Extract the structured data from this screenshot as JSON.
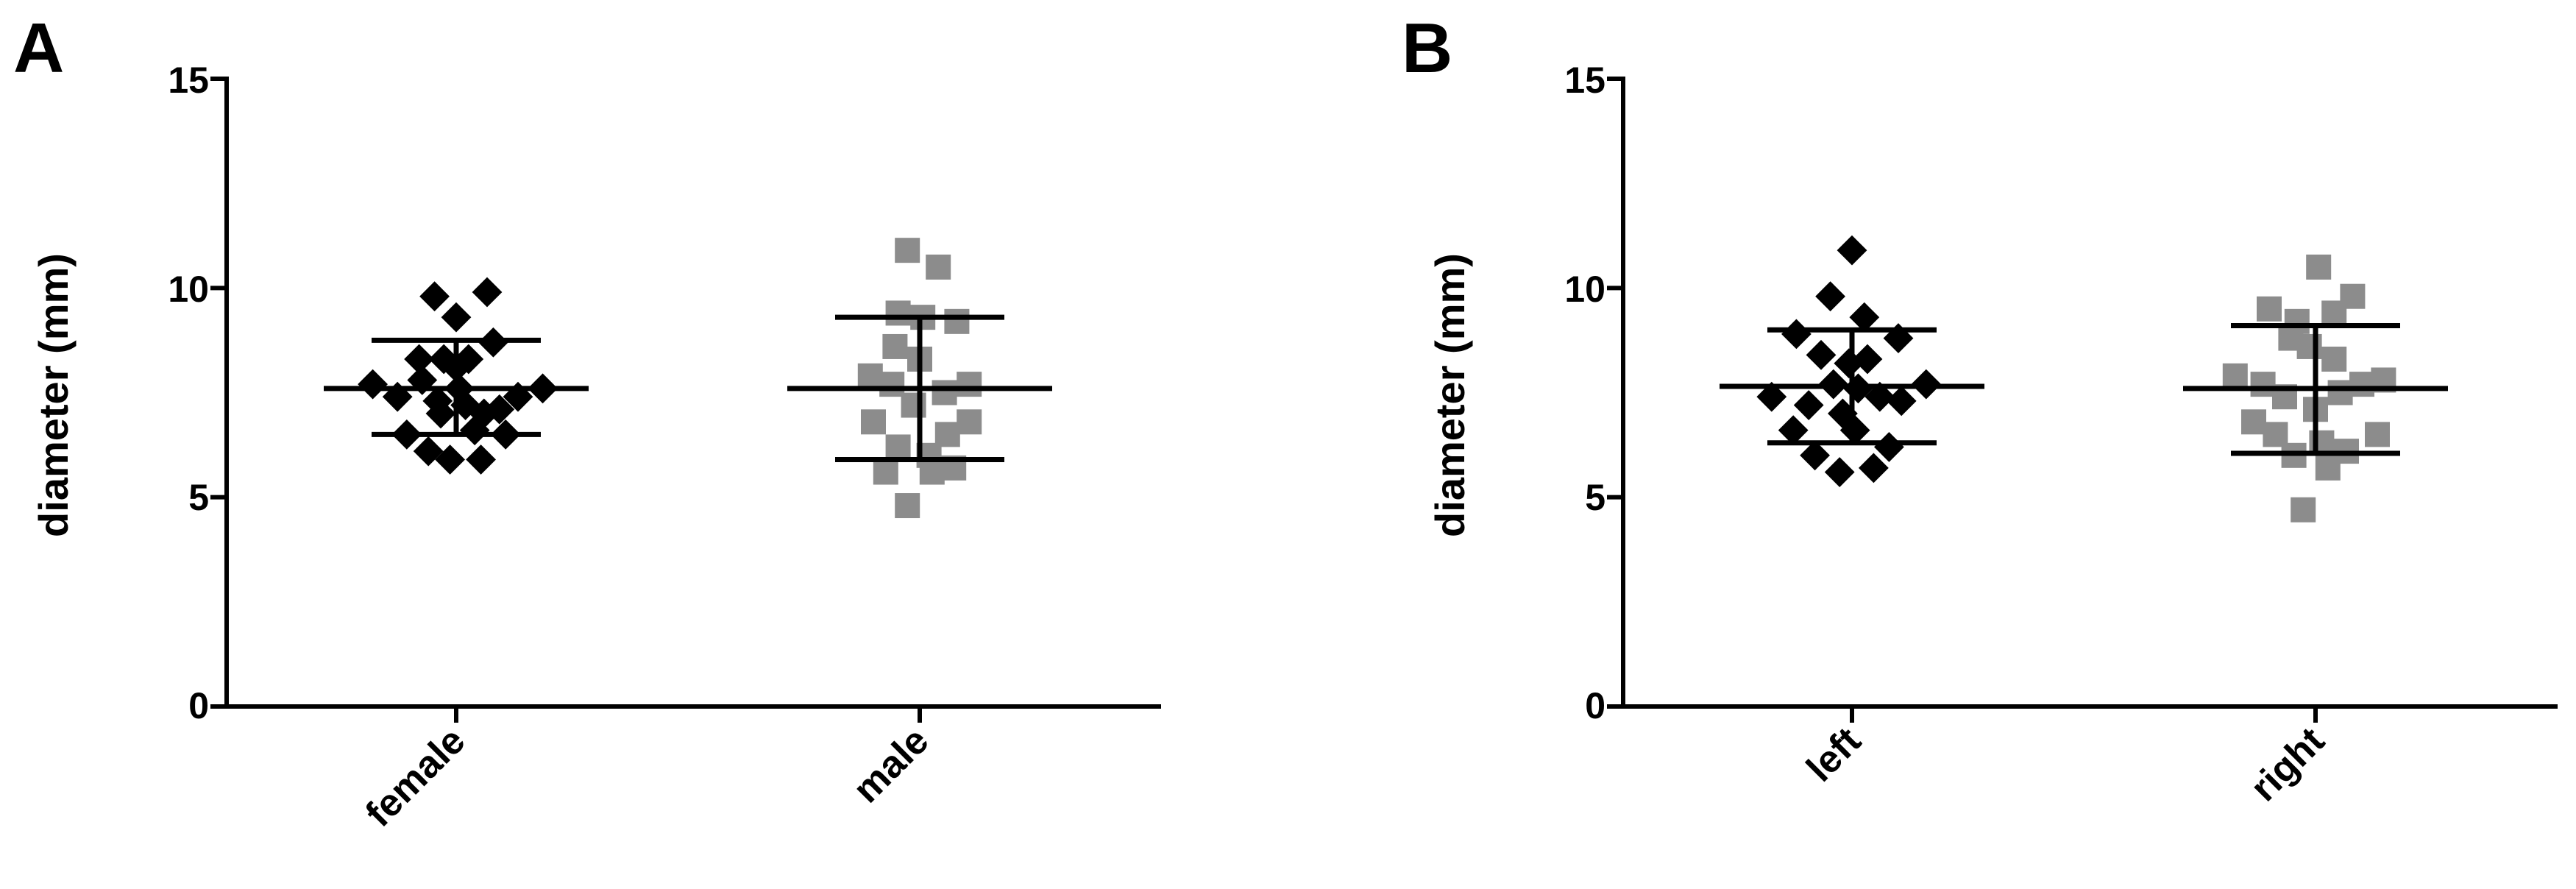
{
  "chart_data": [
    {
      "panel": "A",
      "type": "scatter",
      "title": "",
      "xlabel": "",
      "ylabel": "diameter (mm)",
      "ylim": [
        0,
        15
      ],
      "yticks": [
        0,
        5,
        10,
        15
      ],
      "grid": false,
      "legend": "none",
      "categories": [
        "female",
        "male"
      ],
      "series": [
        {
          "category": "female",
          "marker": "diamond",
          "color": "#000000",
          "summary_color": "#000000",
          "mean": 7.6,
          "sd_low": 6.5,
          "sd_high": 8.75,
          "points": [
            {
              "dx": -0.27,
              "y": 7.7
            },
            {
              "dx": -0.19,
              "y": 7.4
            },
            {
              "dx": -0.16,
              "y": 6.5
            },
            {
              "dx": -0.12,
              "y": 8.3
            },
            {
              "dx": -0.11,
              "y": 7.8
            },
            {
              "dx": -0.09,
              "y": 6.1
            },
            {
              "dx": -0.07,
              "y": 9.8
            },
            {
              "dx": -0.06,
              "y": 7.3
            },
            {
              "dx": -0.05,
              "y": 7.0
            },
            {
              "dx": -0.04,
              "y": 8.3
            },
            {
              "dx": -0.02,
              "y": 5.9
            },
            {
              "dx": 0.0,
              "y": 9.3
            },
            {
              "dx": 0.0,
              "y": 8.1
            },
            {
              "dx": 0.01,
              "y": 7.6
            },
            {
              "dx": 0.03,
              "y": 7.2
            },
            {
              "dx": 0.04,
              "y": 8.3
            },
            {
              "dx": 0.06,
              "y": 6.6
            },
            {
              "dx": 0.08,
              "y": 5.9
            },
            {
              "dx": 0.09,
              "y": 7.0
            },
            {
              "dx": 0.1,
              "y": 9.9
            },
            {
              "dx": 0.12,
              "y": 8.7
            },
            {
              "dx": 0.14,
              "y": 7.1
            },
            {
              "dx": 0.16,
              "y": 6.5
            },
            {
              "dx": 0.2,
              "y": 7.4
            },
            {
              "dx": 0.28,
              "y": 7.6
            }
          ]
        },
        {
          "category": "male",
          "marker": "square",
          "color": "#8c8c8c",
          "summary_color": "#000000",
          "mean": 7.6,
          "sd_low": 5.9,
          "sd_high": 9.3,
          "points": [
            {
              "dx": -0.16,
              "y": 7.9
            },
            {
              "dx": -0.15,
              "y": 6.8
            },
            {
              "dx": -0.11,
              "y": 5.6
            },
            {
              "dx": -0.09,
              "y": 7.7
            },
            {
              "dx": -0.08,
              "y": 8.6
            },
            {
              "dx": -0.07,
              "y": 9.4
            },
            {
              "dx": -0.07,
              "y": 6.2
            },
            {
              "dx": -0.04,
              "y": 10.9
            },
            {
              "dx": -0.04,
              "y": 4.8
            },
            {
              "dx": -0.02,
              "y": 7.2
            },
            {
              "dx": 0.0,
              "y": 8.3
            },
            {
              "dx": 0.01,
              "y": 9.3
            },
            {
              "dx": 0.03,
              "y": 6.0
            },
            {
              "dx": 0.04,
              "y": 5.6
            },
            {
              "dx": 0.06,
              "y": 10.5
            },
            {
              "dx": 0.08,
              "y": 7.5
            },
            {
              "dx": 0.09,
              "y": 6.5
            },
            {
              "dx": 0.11,
              "y": 5.7
            },
            {
              "dx": 0.12,
              "y": 9.2
            },
            {
              "dx": 0.16,
              "y": 6.8
            },
            {
              "dx": 0.16,
              "y": 7.7
            }
          ]
        }
      ]
    },
    {
      "panel": "B",
      "type": "scatter",
      "title": "",
      "xlabel": "",
      "ylabel": "diameter (mm)",
      "ylim": [
        0,
        15
      ],
      "yticks": [
        0,
        5,
        10,
        15
      ],
      "grid": false,
      "legend": "none",
      "categories": [
        "left",
        "right"
      ],
      "series": [
        {
          "category": "left",
          "marker": "diamond",
          "color": "#000000",
          "summary_color": "#000000",
          "mean": 7.65,
          "sd_low": 6.3,
          "sd_high": 9.0,
          "points": [
            {
              "dx": -0.26,
              "y": 7.4
            },
            {
              "dx": -0.19,
              "y": 6.6
            },
            {
              "dx": -0.18,
              "y": 8.9
            },
            {
              "dx": -0.14,
              "y": 7.2
            },
            {
              "dx": -0.12,
              "y": 6.0
            },
            {
              "dx": -0.1,
              "y": 8.4
            },
            {
              "dx": -0.07,
              "y": 9.8
            },
            {
              "dx": -0.06,
              "y": 7.7
            },
            {
              "dx": -0.04,
              "y": 5.6
            },
            {
              "dx": -0.03,
              "y": 7.0
            },
            {
              "dx": -0.01,
              "y": 8.2
            },
            {
              "dx": 0.0,
              "y": 10.9
            },
            {
              "dx": 0.01,
              "y": 6.6
            },
            {
              "dx": 0.02,
              "y": 7.6
            },
            {
              "dx": 0.04,
              "y": 9.3
            },
            {
              "dx": 0.05,
              "y": 8.3
            },
            {
              "dx": 0.07,
              "y": 5.7
            },
            {
              "dx": 0.09,
              "y": 7.4
            },
            {
              "dx": 0.12,
              "y": 6.2
            },
            {
              "dx": 0.15,
              "y": 8.8
            },
            {
              "dx": 0.16,
              "y": 7.3
            },
            {
              "dx": 0.24,
              "y": 7.7
            }
          ]
        },
        {
          "category": "right",
          "marker": "square",
          "color": "#8c8c8c",
          "summary_color": "#000000",
          "mean": 7.6,
          "sd_low": 6.05,
          "sd_high": 9.1,
          "points": [
            {
              "dx": -0.26,
              "y": 7.9
            },
            {
              "dx": -0.2,
              "y": 6.8
            },
            {
              "dx": -0.17,
              "y": 7.7
            },
            {
              "dx": -0.15,
              "y": 9.5
            },
            {
              "dx": -0.13,
              "y": 6.5
            },
            {
              "dx": -0.1,
              "y": 7.4
            },
            {
              "dx": -0.08,
              "y": 8.8
            },
            {
              "dx": -0.07,
              "y": 6.0
            },
            {
              "dx": -0.06,
              "y": 9.2
            },
            {
              "dx": -0.04,
              "y": 4.7
            },
            {
              "dx": -0.02,
              "y": 8.6
            },
            {
              "dx": 0.0,
              "y": 7.1
            },
            {
              "dx": 0.01,
              "y": 10.5
            },
            {
              "dx": 0.02,
              "y": 6.3
            },
            {
              "dx": 0.04,
              "y": 5.7
            },
            {
              "dx": 0.06,
              "y": 8.3
            },
            {
              "dx": 0.06,
              "y": 9.4
            },
            {
              "dx": 0.08,
              "y": 7.5
            },
            {
              "dx": 0.1,
              "y": 6.1
            },
            {
              "dx": 0.12,
              "y": 9.8
            },
            {
              "dx": 0.15,
              "y": 7.7
            },
            {
              "dx": 0.2,
              "y": 6.5
            },
            {
              "dx": 0.22,
              "y": 7.8
            }
          ]
        }
      ]
    }
  ]
}
